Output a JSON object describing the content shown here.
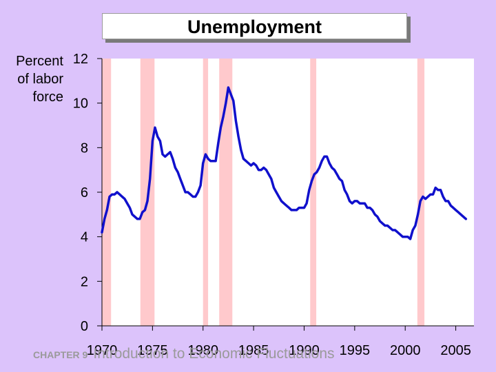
{
  "footer": {
    "chapter": "CHAPTER 9",
    "text": "Introduction to Economic Fluctuations"
  },
  "chart_data": {
    "type": "line",
    "title": "Unemployment",
    "ylabel": "Percent\nof labor\nforce",
    "xlabel": "",
    "ylim": [
      0,
      12
    ],
    "xlim": [
      1970,
      2006.8
    ],
    "yticks": [
      0,
      2,
      4,
      6,
      8,
      10,
      12
    ],
    "xticks": [
      1970,
      1975,
      1980,
      1985,
      1990,
      1995,
      2000,
      2005
    ],
    "grid": false,
    "line_color": "#1010cc",
    "recession_color": "#ffc9cc",
    "plot_background": "#ffffff",
    "recessions": [
      [
        1970.0,
        1970.9
      ],
      [
        1973.8,
        1975.2
      ],
      [
        1980.0,
        1980.5
      ],
      [
        1981.6,
        1982.9
      ],
      [
        1990.6,
        1991.2
      ],
      [
        2001.2,
        2001.9
      ]
    ],
    "series": [
      {
        "x": [
          1970.0,
          1970.25,
          1970.5,
          1970.75,
          1971.0,
          1971.25,
          1971.5,
          1971.75,
          1972.0,
          1972.25,
          1972.5,
          1972.75,
          1973.0,
          1973.25,
          1973.5,
          1973.75,
          1974.0,
          1974.25,
          1974.5,
          1974.75,
          1975.0,
          1975.25,
          1975.5,
          1975.75,
          1976.0,
          1976.25,
          1976.5,
          1976.75,
          1977.0,
          1977.25,
          1977.5,
          1977.75,
          1978.0,
          1978.25,
          1978.5,
          1978.75,
          1979.0,
          1979.25,
          1979.5,
          1979.75,
          1980.0,
          1980.25,
          1980.5,
          1980.75,
          1981.0,
          1981.25,
          1981.5,
          1981.75,
          1982.0,
          1982.25,
          1982.5,
          1982.75,
          1983.0,
          1983.25,
          1983.5,
          1983.75,
          1984.0,
          1984.25,
          1984.5,
          1984.75,
          1985.0,
          1985.25,
          1985.5,
          1985.75,
          1986.0,
          1986.25,
          1986.5,
          1986.75,
          1987.0,
          1987.25,
          1987.5,
          1987.75,
          1988.0,
          1988.25,
          1988.5,
          1988.75,
          1989.0,
          1989.25,
          1989.5,
          1989.75,
          1990.0,
          1990.25,
          1990.5,
          1990.75,
          1991.0,
          1991.25,
          1991.5,
          1991.75,
          1992.0,
          1992.25,
          1992.5,
          1992.75,
          1993.0,
          1993.25,
          1993.5,
          1993.75,
          1994.0,
          1994.25,
          1994.5,
          1994.75,
          1995.0,
          1995.25,
          1995.5,
          1995.75,
          1996.0,
          1996.25,
          1996.5,
          1996.75,
          1997.0,
          1997.25,
          1997.5,
          1997.75,
          1998.0,
          1998.25,
          1998.5,
          1998.75,
          1999.0,
          1999.25,
          1999.5,
          1999.75,
          2000.0,
          2000.25,
          2000.5,
          2000.75,
          2001.0,
          2001.25,
          2001.5,
          2001.75,
          2002.0,
          2002.25,
          2002.5,
          2002.75,
          2003.0,
          2003.25,
          2003.5,
          2003.75,
          2004.0,
          2004.25,
          2004.5,
          2004.75,
          2005.0,
          2005.25,
          2005.5,
          2005.75,
          2006.0
        ],
        "values": [
          4.2,
          4.8,
          5.2,
          5.8,
          5.9,
          5.9,
          6.0,
          5.9,
          5.8,
          5.7,
          5.5,
          5.3,
          5.0,
          4.9,
          4.8,
          4.8,
          5.1,
          5.2,
          5.6,
          6.6,
          8.3,
          8.9,
          8.5,
          8.3,
          7.7,
          7.6,
          7.7,
          7.8,
          7.5,
          7.1,
          6.9,
          6.6,
          6.3,
          6.0,
          6.0,
          5.9,
          5.8,
          5.8,
          6.0,
          6.3,
          7.3,
          7.7,
          7.5,
          7.4,
          7.4,
          7.4,
          8.2,
          8.9,
          9.4,
          10.0,
          10.7,
          10.4,
          10.1,
          9.2,
          8.5,
          7.9,
          7.5,
          7.4,
          7.3,
          7.2,
          7.3,
          7.2,
          7.0,
          7.0,
          7.1,
          7.0,
          6.8,
          6.6,
          6.2,
          6.0,
          5.8,
          5.6,
          5.5,
          5.4,
          5.3,
          5.2,
          5.2,
          5.2,
          5.3,
          5.3,
          5.3,
          5.5,
          6.1,
          6.5,
          6.8,
          6.9,
          7.1,
          7.4,
          7.6,
          7.6,
          7.3,
          7.1,
          7.0,
          6.8,
          6.6,
          6.5,
          6.1,
          5.9,
          5.6,
          5.5,
          5.6,
          5.6,
          5.5,
          5.5,
          5.5,
          5.3,
          5.3,
          5.2,
          5.0,
          4.9,
          4.7,
          4.6,
          4.5,
          4.5,
          4.4,
          4.3,
          4.3,
          4.2,
          4.1,
          4.0,
          4.0,
          4.0,
          3.9,
          4.3,
          4.5,
          5.0,
          5.6,
          5.8,
          5.7,
          5.8,
          5.9,
          5.9,
          6.2,
          6.1,
          6.1,
          5.8,
          5.6,
          5.6,
          5.4,
          5.3,
          5.2,
          5.1,
          5.0,
          4.9,
          4.8
        ]
      }
    ]
  }
}
